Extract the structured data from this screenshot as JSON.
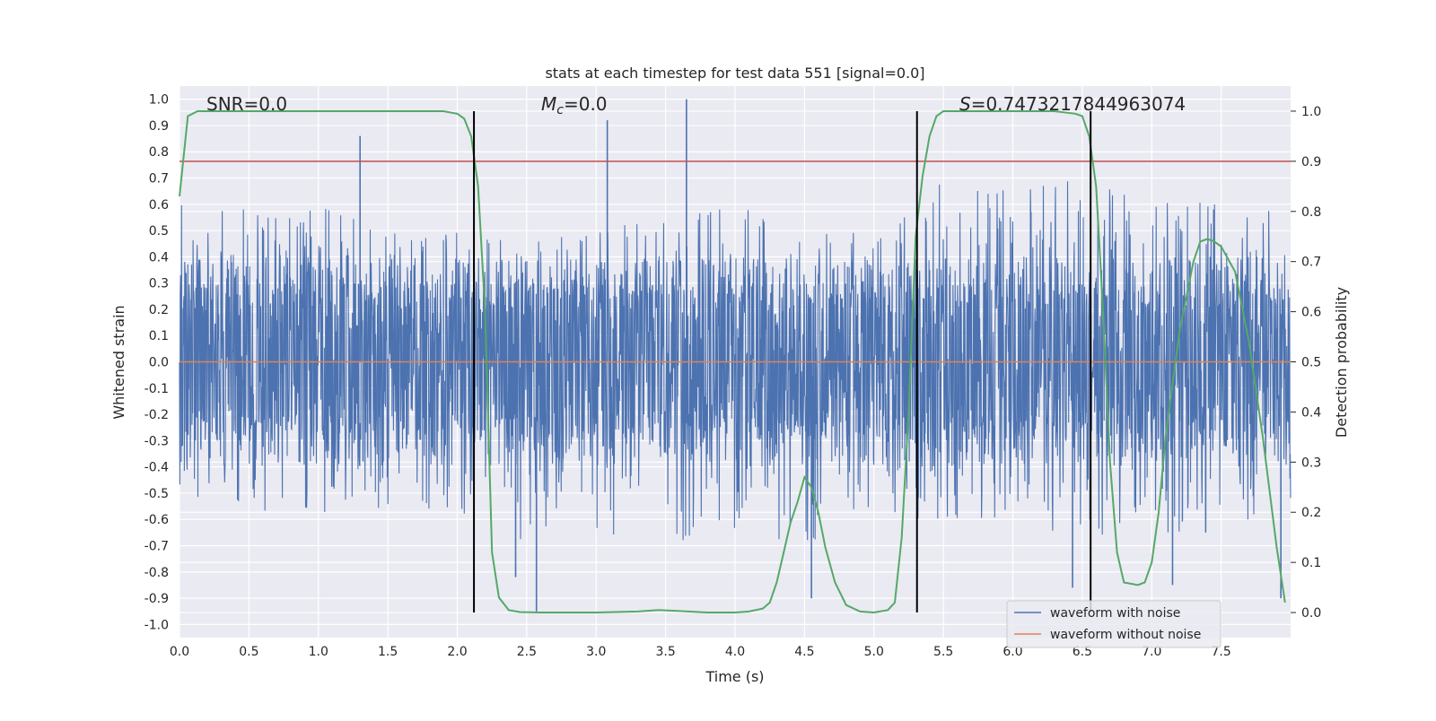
{
  "chart_data": {
    "type": "line",
    "title": "stats at each timestep for test data 551 [signal=0.0]",
    "xlabel": "Time (s)",
    "ylabel": "Whitened strain",
    "y2label": "Detection probability",
    "xlim": [
      0.0,
      8.0
    ],
    "ylim": [
      -1.05,
      1.05
    ],
    "y2lim": [
      -0.05,
      1.05
    ],
    "xticks": [
      "0.0",
      "0.5",
      "1.0",
      "1.5",
      "2.0",
      "2.5",
      "3.0",
      "3.5",
      "4.0",
      "4.5",
      "5.0",
      "5.5",
      "6.0",
      "6.5",
      "7.0",
      "7.5"
    ],
    "yticks": [
      "-1.0",
      "-0.9",
      "-0.8",
      "-0.7",
      "-0.6",
      "-0.5",
      "-0.4",
      "-0.3",
      "-0.2",
      "-0.1",
      "0.0",
      "0.1",
      "0.2",
      "0.3",
      "0.4",
      "0.5",
      "0.6",
      "0.7",
      "0.8",
      "0.9",
      "1.0"
    ],
    "y2ticks": [
      "0.0",
      "0.1",
      "0.2",
      "0.3",
      "0.4",
      "0.5",
      "0.6",
      "0.7",
      "0.8",
      "0.9",
      "1.0"
    ],
    "annotations": {
      "snr": "SNR=0.0",
      "mc_symbol": "M",
      "mc_sub": "c",
      "mc_value": "=0.0",
      "s_symbol": "S",
      "s_value": "=0.7473217844963074"
    },
    "legend": {
      "placement": "lower right",
      "entries": [
        "waveform with noise",
        "waveform without noise"
      ]
    },
    "threshold_line": {
      "y2": 0.9,
      "color": "#c44e52"
    },
    "vertical_lines_x": [
      2.12,
      5.31,
      6.56
    ],
    "colors": {
      "noise": "#4c72b0",
      "clean": "#dd8452",
      "prob": "#55a868",
      "vline": "#000000",
      "background": "#eaeaf2",
      "grid": "#ffffff"
    },
    "series": [
      {
        "name": "waveform with noise",
        "axis": "left",
        "note": "dense noise trace",
        "envelope": {
          "x": [
            0.0,
            0.5,
            1.0,
            1.5,
            2.0,
            2.5,
            3.0,
            3.5,
            4.0,
            4.5,
            5.0,
            5.5,
            6.0,
            6.5,
            7.0,
            7.5,
            8.0
          ],
          "upper": [
            0.6,
            0.6,
            0.6,
            0.5,
            0.5,
            0.45,
            0.5,
            0.55,
            0.6,
            0.5,
            0.55,
            0.7,
            0.65,
            0.7,
            0.65,
            0.6,
            0.6
          ],
          "lower": [
            -0.5,
            -0.6,
            -0.6,
            -0.55,
            -0.6,
            -0.7,
            -0.65,
            -0.7,
            -0.65,
            -0.7,
            -0.6,
            -0.6,
            -0.6,
            -0.7,
            -0.65,
            -0.7,
            -0.6
          ]
        },
        "spikes": [
          {
            "x": 1.3,
            "y": 0.86
          },
          {
            "x": 3.08,
            "y": 0.92
          },
          {
            "x": 3.65,
            "y": 1.0
          },
          {
            "x": 2.57,
            "y": -0.95
          },
          {
            "x": 4.55,
            "y": -0.9
          },
          {
            "x": 6.43,
            "y": -0.86
          },
          {
            "x": 7.93,
            "y": -0.9
          },
          {
            "x": 2.42,
            "y": -0.82
          },
          {
            "x": 7.15,
            "y": -0.85
          }
        ]
      },
      {
        "name": "waveform without noise",
        "axis": "left",
        "x": [
          0.0,
          8.0
        ],
        "y": [
          0.0,
          0.0
        ]
      },
      {
        "name": "detection probability",
        "axis": "right",
        "x": [
          0.0,
          0.06,
          0.13,
          0.25,
          0.5,
          1.0,
          1.5,
          1.9,
          2.0,
          2.05,
          2.1,
          2.15,
          2.2,
          2.25,
          2.3,
          2.37,
          2.45,
          2.6,
          3.0,
          3.3,
          3.45,
          3.6,
          3.8,
          4.0,
          4.1,
          4.2,
          4.25,
          4.3,
          4.35,
          4.4,
          4.45,
          4.5,
          4.55,
          4.6,
          4.65,
          4.72,
          4.8,
          4.9,
          5.0,
          5.1,
          5.15,
          5.2,
          5.25,
          5.3,
          5.35,
          5.4,
          5.45,
          5.5,
          5.6,
          5.8,
          6.0,
          6.3,
          6.45,
          6.5,
          6.55,
          6.6,
          6.65,
          6.7,
          6.75,
          6.8,
          6.9,
          6.95,
          7.0,
          7.05,
          7.1,
          7.2,
          7.3,
          7.35,
          7.4,
          7.45,
          7.5,
          7.6,
          7.7,
          7.8,
          7.9,
          7.96
        ],
        "y": [
          0.83,
          0.99,
          1.0,
          1.0,
          1.0,
          1.0,
          1.0,
          1.0,
          0.995,
          0.985,
          0.95,
          0.85,
          0.6,
          0.12,
          0.03,
          0.005,
          0.001,
          0.0,
          0.0,
          0.002,
          0.005,
          0.003,
          0.0,
          0.0,
          0.002,
          0.008,
          0.02,
          0.06,
          0.12,
          0.18,
          0.22,
          0.27,
          0.25,
          0.2,
          0.13,
          0.06,
          0.015,
          0.002,
          0.0,
          0.005,
          0.02,
          0.15,
          0.4,
          0.75,
          0.87,
          0.95,
          0.99,
          1.0,
          1.0,
          1.0,
          1.0,
          1.0,
          0.995,
          0.99,
          0.95,
          0.85,
          0.6,
          0.3,
          0.12,
          0.06,
          0.055,
          0.06,
          0.1,
          0.2,
          0.35,
          0.56,
          0.7,
          0.74,
          0.745,
          0.74,
          0.73,
          0.68,
          0.54,
          0.35,
          0.13,
          0.02
        ]
      }
    ]
  }
}
